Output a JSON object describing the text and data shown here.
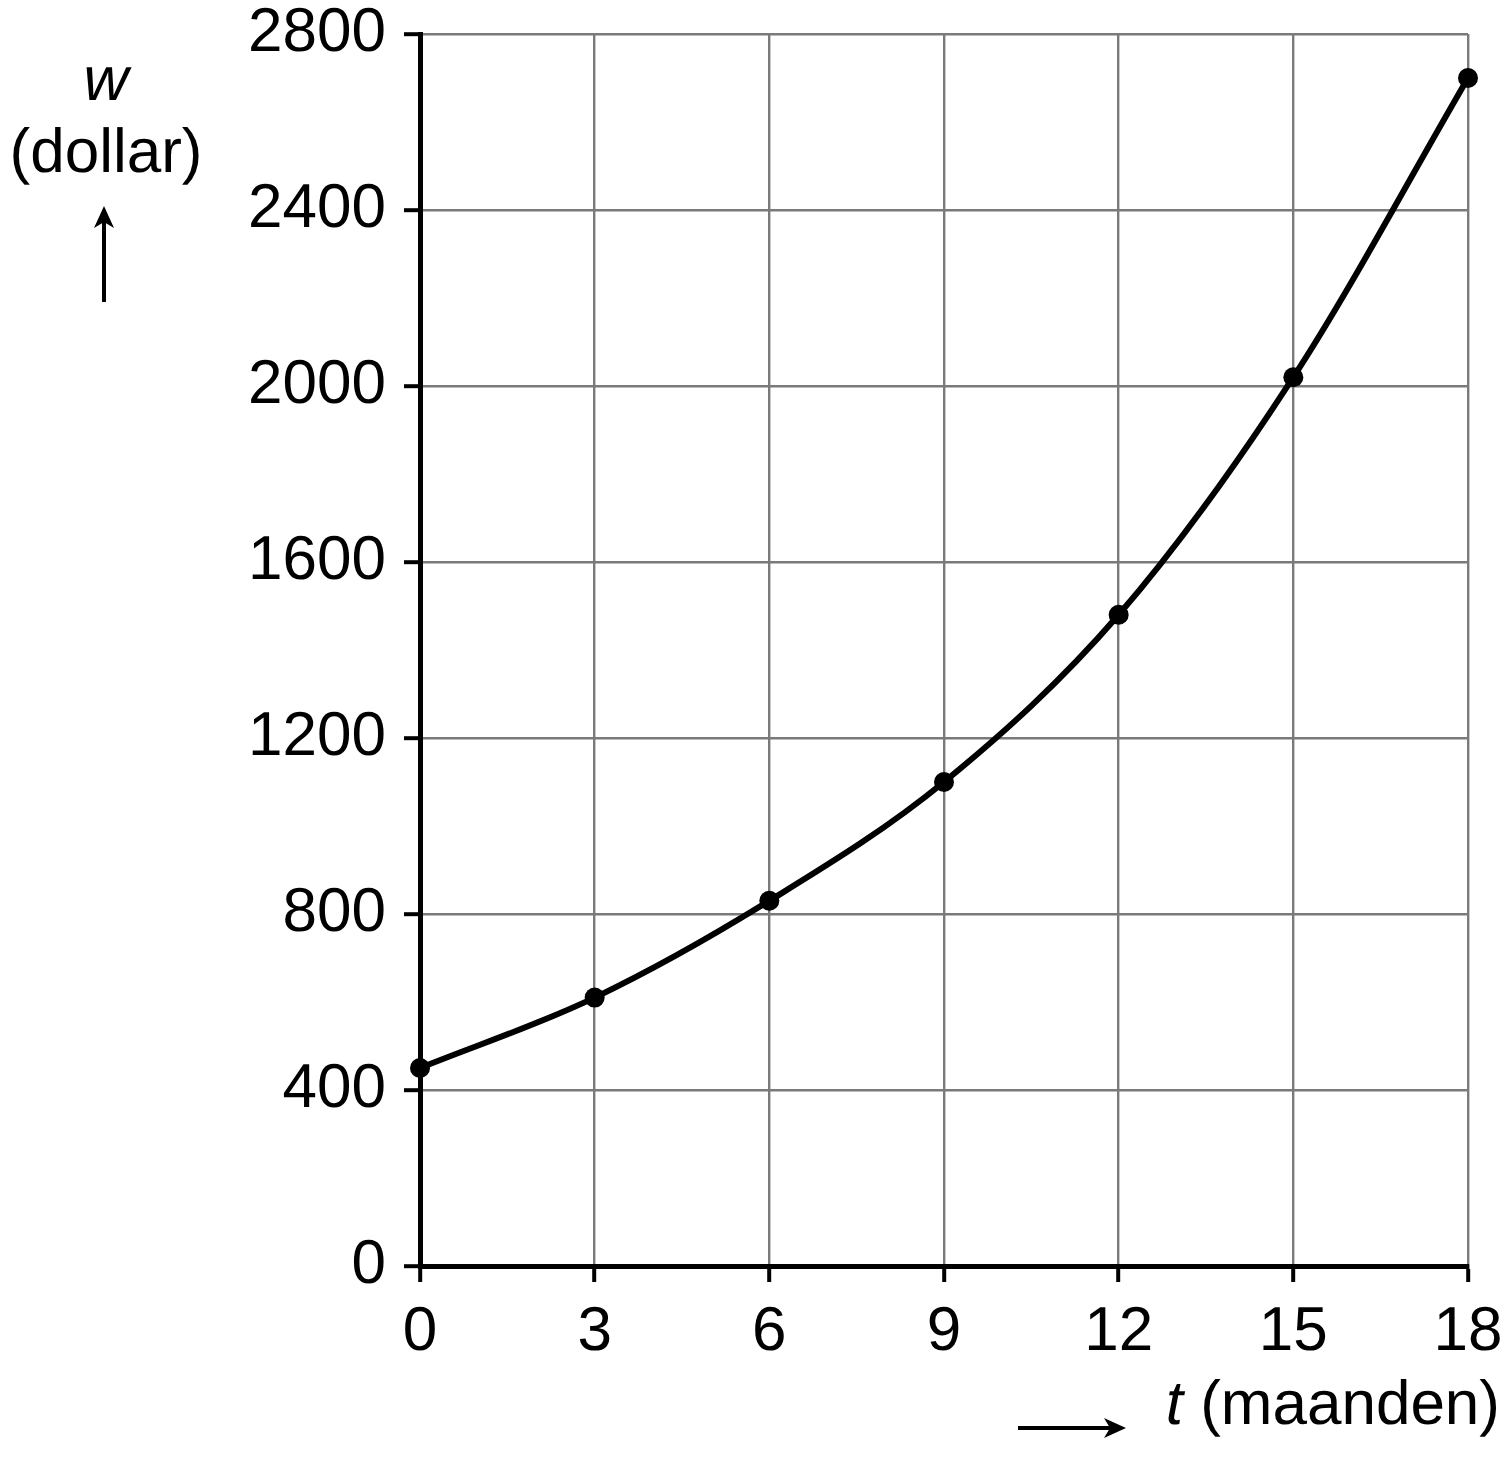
{
  "chart_data": {
    "type": "line",
    "xlabel": "t (maanden)",
    "ylabel": "w (dollar)",
    "x": [
      0,
      3,
      6,
      9,
      12,
      15,
      18
    ],
    "values": [
      450,
      610,
      830,
      1100,
      1480,
      2020,
      2700
    ],
    "color": "#000000",
    "xlim": [
      0,
      18
    ],
    "xticks": [
      0,
      3,
      6,
      9,
      12,
      15,
      18
    ],
    "ylim": [
      0,
      2800
    ],
    "yticks": [
      0,
      400,
      800,
      1200,
      1600,
      2000,
      2400,
      2800
    ],
    "grid": true,
    "marker": "circle",
    "line_style": "solid"
  }
}
